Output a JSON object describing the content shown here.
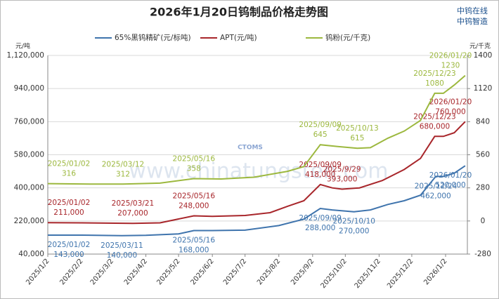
{
  "brand": [
    "中钨在线",
    "中钨智造"
  ],
  "chart_data": {
    "type": "line",
    "title": "2026年1月20日钨制品价格走势图",
    "y_label": "元/吨",
    "y2_label": "元/千克",
    "watermark": "www.chinatungsten.com",
    "watermark_logo": "CTOMS",
    "xlim": [
      "2025-01-02",
      "2026-01-22"
    ],
    "xticks": [
      {
        "value": "2025-01-02",
        "label": "2025/1/2"
      },
      {
        "value": "2025-02-02",
        "label": "2025/2/2"
      },
      {
        "value": "2025-03-02",
        "label": "2025/3/2"
      },
      {
        "value": "2025-04-02",
        "label": "2025/4/2"
      },
      {
        "value": "2025-05-02",
        "label": "2025/5/2"
      },
      {
        "value": "2025-06-02",
        "label": "2025/6/2"
      },
      {
        "value": "2025-07-02",
        "label": "2025/7/2"
      },
      {
        "value": "2025-08-02",
        "label": "2025/8/2"
      },
      {
        "value": "2025-09-02",
        "label": "2025/9/2"
      },
      {
        "value": "2025-10-02",
        "label": "2025/10/2"
      },
      {
        "value": "2025-11-02",
        "label": "2025/11/2"
      },
      {
        "value": "2025-12-02",
        "label": "2025/12/2"
      },
      {
        "value": "2026-01-02",
        "label": "2026/1/2"
      }
    ],
    "ylim": [
      40000,
      1120000
    ],
    "yticks": [
      {
        "value": 40000,
        "label": "40,000"
      },
      {
        "value": 220000,
        "label": "220,000"
      },
      {
        "value": 400000,
        "label": "400,000"
      },
      {
        "value": 580000,
        "label": "580,000"
      },
      {
        "value": 760000,
        "label": "760,000"
      },
      {
        "value": 940000,
        "label": "940,000"
      },
      {
        "value": 1120000,
        "label": "1,120,000"
      }
    ],
    "y2lim": [
      -280,
      1400
    ],
    "y2ticks": [
      -280,
      0,
      280,
      560,
      840,
      1120,
      1400
    ],
    "grid": true,
    "legend": "top",
    "series": [
      {
        "name": "65%黑钨精矿(元/标吨)",
        "color": "#3f74ad",
        "x": [
          "2025-01-02",
          "2025-02-02",
          "2025-03-11",
          "2025-04-02",
          "2025-05-02",
          "2025-05-16",
          "2025-06-02",
          "2025-07-02",
          "2025-08-02",
          "2025-08-25",
          "2025-09-09",
          "2025-09-20",
          "2025-10-10",
          "2025-10-25",
          "2025-11-10",
          "2025-11-25",
          "2025-12-10",
          "2025-12-24",
          "2025-12-31",
          "2026-01-10",
          "2026-01-20"
        ],
        "values": [
          143000,
          143000,
          140000,
          142000,
          150000,
          168000,
          168000,
          170000,
          195000,
          230000,
          288000,
          280000,
          270000,
          280000,
          310000,
          330000,
          360000,
          462000,
          462000,
          480000,
          520000
        ],
        "date_labels": [
          "2025/01/02",
          null,
          "2025/03/11",
          null,
          null,
          "2025/05/16",
          null,
          null,
          null,
          null,
          "2025/09/09",
          null,
          "2025/10/10",
          null,
          null,
          null,
          null,
          "2025/12/24",
          null,
          null,
          "2026/01/20"
        ],
        "value_labels": [
          "143,000",
          null,
          "140,000",
          null,
          null,
          "168,000",
          null,
          null,
          null,
          null,
          "288,000",
          null,
          "270,000",
          null,
          null,
          null,
          null,
          "462,000",
          null,
          null,
          "520,000"
        ]
      },
      {
        "name": "APT(元/吨)",
        "color": "#a8262b",
        "x": [
          "2025-01-02",
          "2025-02-02",
          "2025-03-21",
          "2025-04-15",
          "2025-05-16",
          "2025-06-02",
          "2025-07-02",
          "2025-07-25",
          "2025-08-10",
          "2025-08-25",
          "2025-09-09",
          "2025-09-20",
          "2025-09-29",
          "2025-10-15",
          "2025-11-05",
          "2025-11-25",
          "2025-12-10",
          "2025-12-23",
          "2025-12-31",
          "2026-01-10",
          "2026-01-20"
        ],
        "values": [
          211000,
          210000,
          207000,
          210000,
          248000,
          245000,
          250000,
          265000,
          300000,
          330000,
          418000,
          400000,
          393000,
          400000,
          440000,
          500000,
          560000,
          680000,
          680000,
          700000,
          760000
        ],
        "date_labels": [
          "2025/01/02",
          null,
          "2025/03/21",
          null,
          "2025/05/16",
          null,
          null,
          null,
          null,
          null,
          "2025/09/09",
          null,
          "2025/9/29",
          null,
          null,
          null,
          null,
          "2025/12/23",
          null,
          null,
          "2026/01/20"
        ],
        "value_labels": [
          "211,000",
          null,
          "207,000",
          null,
          "248,000",
          null,
          null,
          null,
          null,
          null,
          "418,000",
          null,
          "393,000",
          null,
          null,
          null,
          null,
          "680,000",
          null,
          null,
          "760,000"
        ]
      },
      {
        "name": "钨粉(元/千克)",
        "color": "#9cb83e",
        "axis": "y2",
        "x": [
          "2025-01-02",
          "2025-02-10",
          "2025-03-12",
          "2025-04-15",
          "2025-05-16",
          "2025-06-10",
          "2025-07-10",
          "2025-08-10",
          "2025-08-25",
          "2025-09-09",
          "2025-09-25",
          "2025-10-13",
          "2025-10-25",
          "2025-11-10",
          "2025-11-25",
          "2025-12-10",
          "2025-12-23",
          "2025-12-31",
          "2026-01-10",
          "2026-01-20"
        ],
        "values": [
          316,
          312,
          312,
          320,
          358,
          355,
          370,
          420,
          460,
          645,
          630,
          615,
          620,
          700,
          760,
          850,
          1080,
          1080,
          1150,
          1230
        ],
        "date_labels": [
          "2025/01/02",
          null,
          "2025/03/12",
          null,
          "2025/05/16",
          null,
          null,
          null,
          null,
          "2025/09/09",
          null,
          "2025/10/13",
          null,
          null,
          null,
          null,
          "2025/12/23",
          null,
          null,
          "2026/01/20"
        ],
        "value_labels": [
          "316",
          null,
          "312",
          null,
          "358",
          null,
          null,
          null,
          null,
          "645",
          null,
          "615",
          null,
          null,
          null,
          null,
          "1080",
          null,
          null,
          "1230"
        ]
      }
    ]
  }
}
